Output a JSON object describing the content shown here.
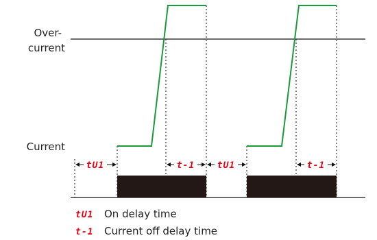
{
  "labels": {
    "over_line1": "Over-",
    "over_line2": "current",
    "current": "Current"
  },
  "markers": {
    "on_delay": "tU1",
    "off_delay": "t-1"
  },
  "legend": {
    "on_delay_code": "tU1",
    "on_delay_text": "On delay time",
    "off_delay_code": "t-1",
    "off_delay_text": "Current off delay time"
  },
  "colors": {
    "current_trace": "#1a9a3a",
    "output_bar": "#231815",
    "marker": "#e60012",
    "line": "#111111",
    "dotted": "#222222"
  }
}
